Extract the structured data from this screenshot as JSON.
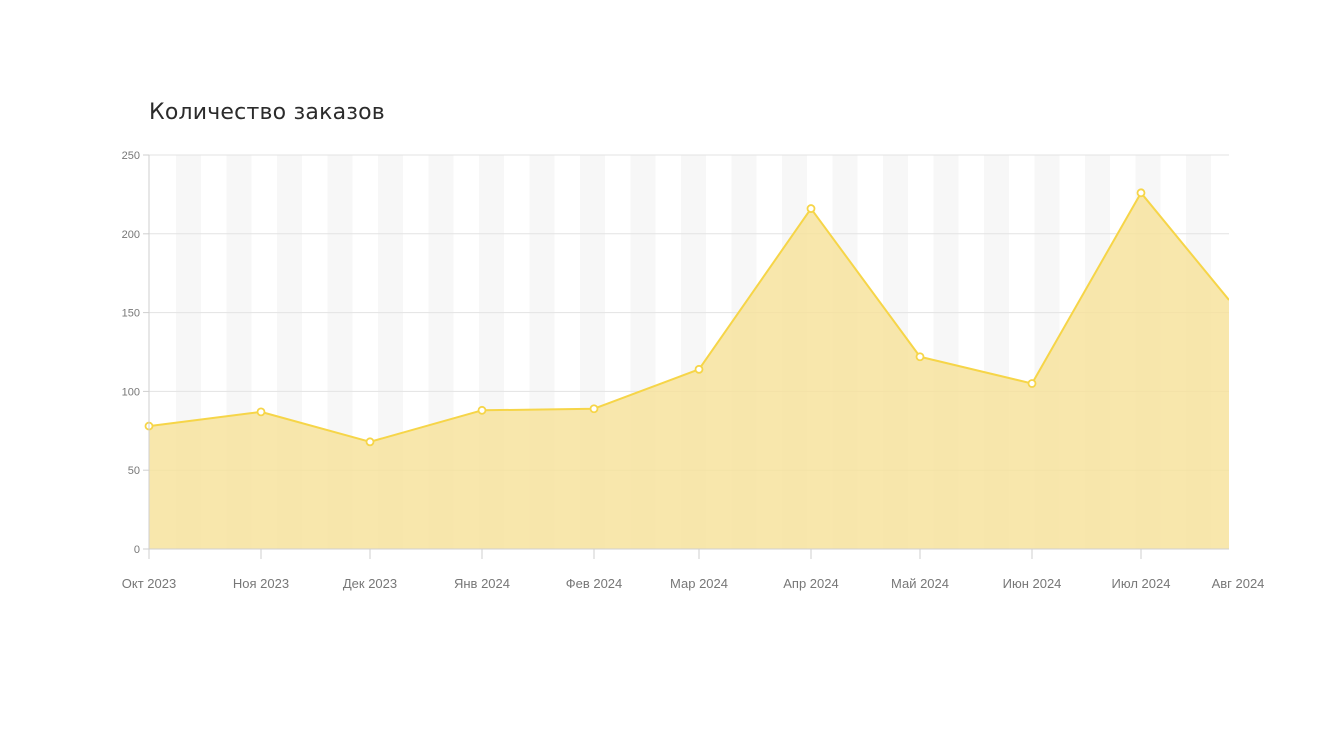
{
  "chart_data": {
    "type": "area",
    "title": "Количество заказов",
    "xlabel": "",
    "ylabel": "",
    "categories": [
      "Окт 2023",
      "Ноя 2023",
      "Дек 2023",
      "Янв 2024",
      "Фев 2024",
      "Мар 2024",
      "Апр 2024",
      "Май 2024",
      "Июн 2024",
      "Июл 2024",
      "Авг 2024"
    ],
    "values": [
      78,
      87,
      68,
      88,
      89,
      114,
      216,
      122,
      105,
      226,
      158
    ],
    "ylim": [
      0,
      250
    ],
    "y_ticks": [
      0,
      50,
      100,
      150,
      200,
      250
    ],
    "grid": true,
    "legend": "none",
    "colors": {
      "line": "#f6d548",
      "fill": "#f7e29a",
      "marker_fill": "#ffffff",
      "grid": "#e3e3e3",
      "stripe": "#f7f7f7",
      "axis": "#cfcfcf",
      "title": "#2b2b2b",
      "tick": "#777777"
    }
  }
}
